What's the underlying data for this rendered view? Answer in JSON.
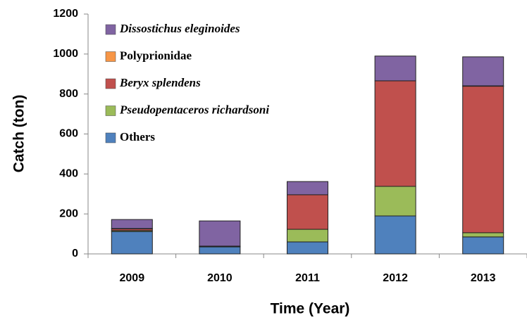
{
  "chart_data": {
    "type": "stacked_bar",
    "categories": [
      "2009",
      "2010",
      "2011",
      "2012",
      "2013"
    ],
    "series": [
      {
        "name": "Others",
        "color": "#4f81bd",
        "values": [
          112,
          35,
          60,
          190,
          85
        ]
      },
      {
        "name": "Pseudopentaceros richardsoni",
        "color": "#9bbb59",
        "values": [
          5,
          2,
          63,
          148,
          21
        ]
      },
      {
        "name": "Beryx splendens",
        "color": "#c0504d",
        "values": [
          8,
          2,
          173,
          528,
          733
        ]
      },
      {
        "name": "Polyprionidae",
        "color": "#f79646",
        "values": [
          2,
          0,
          0,
          0,
          2
        ]
      },
      {
        "name": "Dissostichus eleginoides",
        "color": "#8064a2",
        "values": [
          45,
          126,
          66,
          124,
          145
        ]
      }
    ],
    "ylim": [
      0,
      1200
    ],
    "yticks": [
      0,
      200,
      400,
      600,
      800,
      1000,
      1200
    ],
    "y_label": "Catch (ton)",
    "x_label": "Time (Year)",
    "legend": "upper-left"
  }
}
